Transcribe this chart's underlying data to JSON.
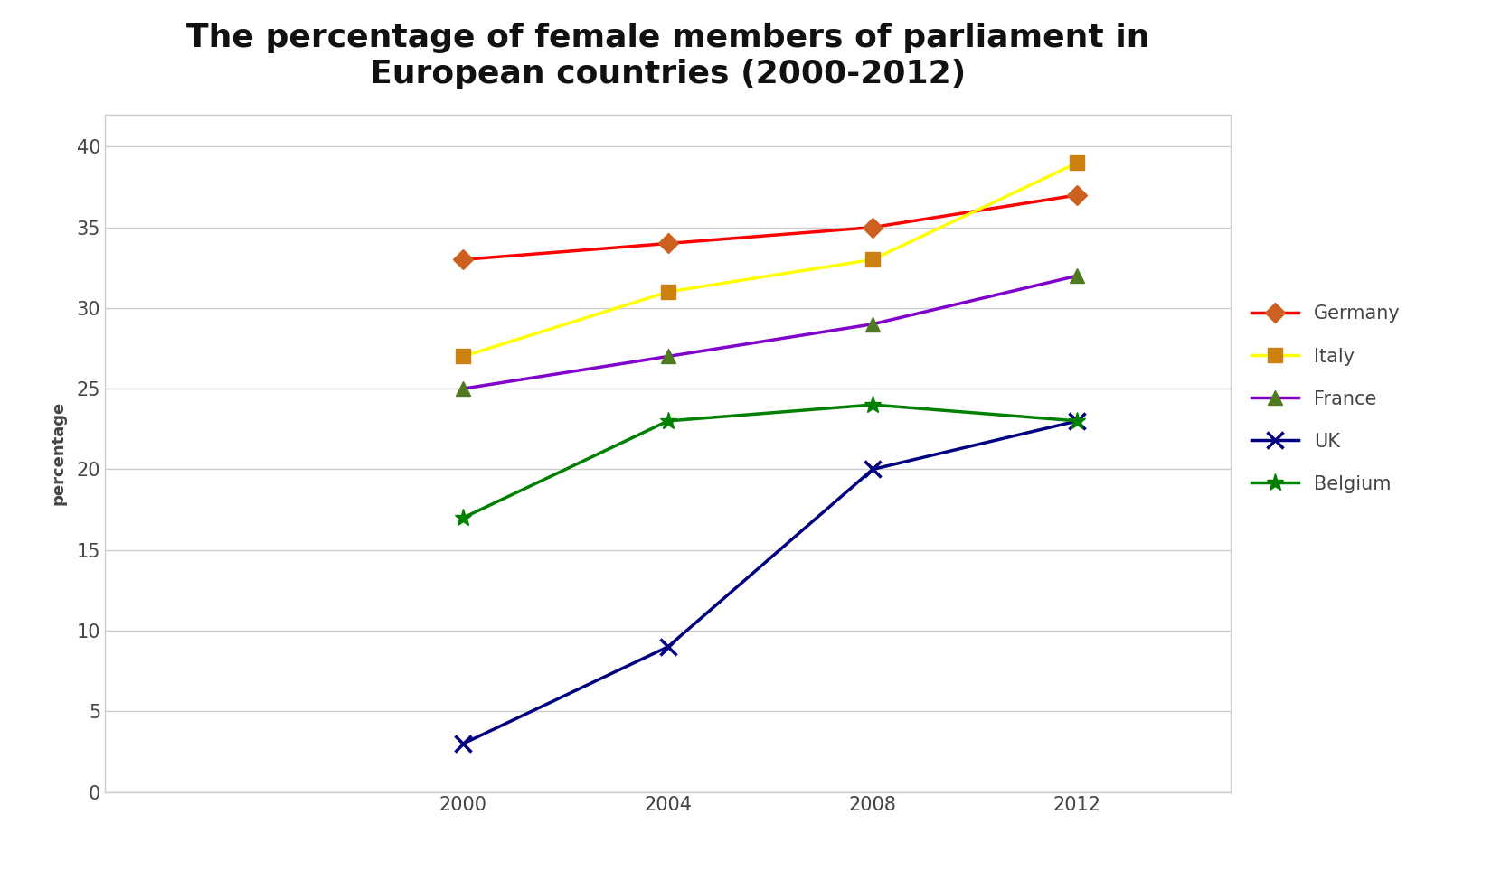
{
  "title": "The percentage of female members of parliament in\nEuropean countries (2000-2012)",
  "ylabel": "percentage",
  "years": [
    2000,
    2004,
    2008,
    2012
  ],
  "series": [
    {
      "name": "Germany",
      "values": [
        33,
        34,
        35,
        37
      ],
      "color": "#ff0000",
      "marker": "D",
      "markercolor": "#cc6020",
      "linewidth": 2.5,
      "markersize": 11
    },
    {
      "name": "Italy",
      "values": [
        27,
        31,
        33,
        39
      ],
      "color": "#ffff00",
      "marker": "s",
      "markercolor": "#cc8010",
      "linewidth": 2.5,
      "markersize": 11
    },
    {
      "name": "France",
      "values": [
        25,
        27,
        29,
        32
      ],
      "color": "#8000cc",
      "marker": "^",
      "markercolor": "#507a20",
      "linewidth": 2.5,
      "markersize": 11
    },
    {
      "name": "UK",
      "values": [
        3,
        9,
        20,
        23
      ],
      "color": "#000080",
      "marker": "x",
      "markercolor": "#000080",
      "linewidth": 2.5,
      "markersize": 13,
      "markeredgewidth": 2.5
    },
    {
      "name": "Belgium",
      "values": [
        17,
        23,
        24,
        23
      ],
      "color": "#008000",
      "marker": "*",
      "markercolor": "#008000",
      "linewidth": 2.5,
      "markersize": 14
    }
  ],
  "ylim": [
    0,
    42
  ],
  "yticks": [
    0,
    5,
    10,
    15,
    20,
    25,
    30,
    35,
    40
  ],
  "xticks": [
    2000,
    2004,
    2008,
    2012
  ],
  "xlim": [
    1993,
    2015
  ],
  "background_color": "#ffffff",
  "plot_bg_color": "#ffffff",
  "grid_color": "#cccccc",
  "title_fontsize": 26,
  "axis_label_fontsize": 13,
  "tick_fontsize": 15,
  "legend_fontsize": 15
}
